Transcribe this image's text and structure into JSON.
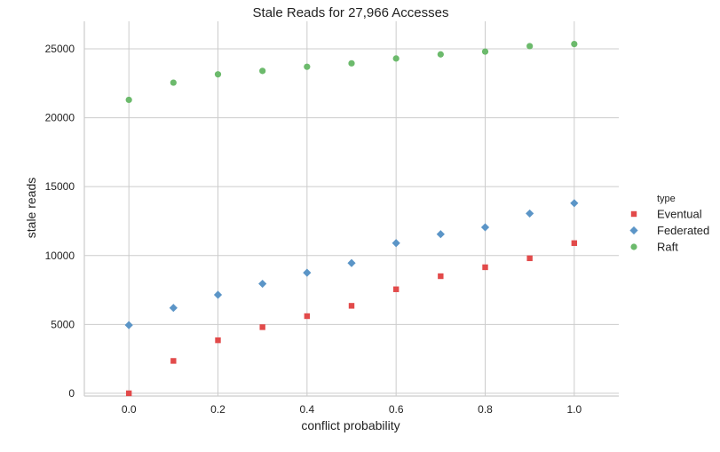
{
  "chart_data": {
    "type": "scatter",
    "title": "Stale Reads for 27,966 Accesses",
    "xlabel": "conflict probability",
    "ylabel": "stale reads",
    "xlim": [
      -0.1,
      1.1
    ],
    "ylim": [
      -200,
      27000
    ],
    "xticks": [
      0.0,
      0.2,
      0.4,
      0.6,
      0.8,
      1.0
    ],
    "xtick_labels": [
      "0.0",
      "0.2",
      "0.4",
      "0.6",
      "0.8",
      "1.0"
    ],
    "yticks": [
      0,
      5000,
      10000,
      15000,
      20000,
      25000
    ],
    "ytick_labels": [
      "0",
      "5000",
      "10000",
      "15000",
      "20000",
      "25000"
    ],
    "grid": true,
    "legend_title": "type",
    "legend_position": "right",
    "x": [
      0.0,
      0.1,
      0.2,
      0.3,
      0.4,
      0.5,
      0.6,
      0.7,
      0.8,
      0.9,
      1.0
    ],
    "series": [
      {
        "name": "Eventual",
        "marker": "square",
        "color": "#e24a4a",
        "values": [
          0,
          2350,
          3850,
          4800,
          5600,
          6350,
          7550,
          8500,
          9150,
          9800,
          10900
        ]
      },
      {
        "name": "Federated",
        "marker": "diamond",
        "color": "#5b95c7",
        "values": [
          4950,
          6200,
          7150,
          7950,
          8750,
          9450,
          10900,
          11550,
          12050,
          13050,
          13800
        ]
      },
      {
        "name": "Raft",
        "marker": "circle",
        "color": "#6cba6c",
        "values": [
          21300,
          22550,
          23150,
          23400,
          23700,
          23950,
          24300,
          24600,
          24800,
          25200,
          25350
        ]
      }
    ]
  }
}
